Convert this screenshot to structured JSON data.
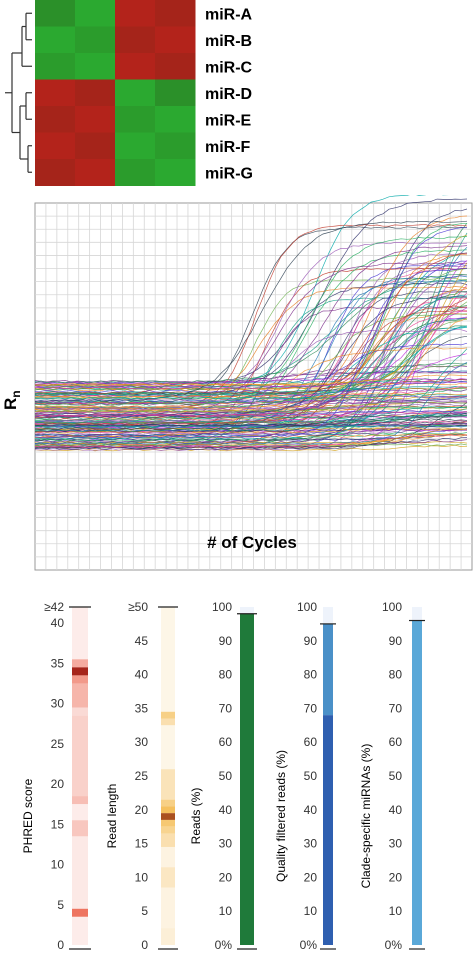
{
  "chart_data": [
    {
      "type": "heatmap",
      "rows": [
        "miR-A",
        "miR-B",
        "miR-C",
        "miR-D",
        "miR-E",
        "miR-F",
        "miR-G"
      ],
      "columns_count": 4,
      "values": [
        [
          -0.7,
          -0.9,
          0.9,
          0.8
        ],
        [
          -0.9,
          -0.8,
          0.8,
          0.9
        ],
        [
          -0.8,
          -0.9,
          0.9,
          0.8
        ],
        [
          0.9,
          0.8,
          -0.9,
          -0.7
        ],
        [
          0.8,
          0.9,
          -0.8,
          -0.9
        ],
        [
          0.9,
          0.8,
          -0.9,
          -0.8
        ],
        [
          0.8,
          0.9,
          -0.8,
          -0.9
        ]
      ],
      "colors": {
        "high": "#c0221c",
        "low": "#2bb533"
      },
      "dendrogram": "left"
    },
    {
      "type": "line",
      "xlabel": "# of Cycles",
      "ylabel": "R",
      "ylabel_subscript": "n",
      "grid": true,
      "x_range": [
        0,
        40
      ],
      "series_description_count": 160
    },
    {
      "type": "heatmap",
      "ylabel": "PHRED score",
      "ticks": [
        "≥42",
        "40",
        "35",
        "30",
        "25",
        "20",
        "15",
        "10",
        "5",
        "0"
      ],
      "color": "#e8452b",
      "bands": [
        {
          "from": 42,
          "to": 35.5,
          "v": 0.1
        },
        {
          "from": 35.5,
          "to": 34.5,
          "v": 0.45
        },
        {
          "from": 34.5,
          "to": 33.5,
          "v": 1.0
        },
        {
          "from": 33.5,
          "to": 32.5,
          "v": 0.55
        },
        {
          "from": 32.5,
          "to": 29.5,
          "v": 0.4
        },
        {
          "from": 29.5,
          "to": 28.5,
          "v": 0.2
        },
        {
          "from": 28.5,
          "to": 18.5,
          "v": 0.25
        },
        {
          "from": 18.5,
          "to": 17.5,
          "v": 0.35
        },
        {
          "from": 17.5,
          "to": 15.5,
          "v": 0.1
        },
        {
          "from": 15.5,
          "to": 13.5,
          "v": 0.3
        },
        {
          "from": 13.5,
          "to": 4.5,
          "v": 0.12
        },
        {
          "from": 4.5,
          "to": 3.5,
          "v": 0.75
        },
        {
          "from": 3.5,
          "to": 0,
          "v": 0.1
        }
      ]
    },
    {
      "type": "heatmap",
      "ylabel": "Read length",
      "ticks": [
        "≥50",
        "45",
        "40",
        "35",
        "30",
        "25",
        "20",
        "15",
        "10",
        "5",
        "0"
      ],
      "color": "#f2b036",
      "bands": [
        {
          "from": 50,
          "to": 34.5,
          "v": 0.12
        },
        {
          "from": 34.5,
          "to": 33.5,
          "v": 0.6
        },
        {
          "from": 33.5,
          "to": 32.5,
          "v": 0.4
        },
        {
          "from": 32.5,
          "to": 26,
          "v": 0.12
        },
        {
          "from": 26,
          "to": 21.5,
          "v": 0.35
        },
        {
          "from": 21.5,
          "to": 20.5,
          "v": 0.6
        },
        {
          "from": 20.5,
          "to": 19.5,
          "v": 0.8
        },
        {
          "from": 19.5,
          "to": 18.5,
          "v": 1.0
        },
        {
          "from": 18.5,
          "to": 17.5,
          "v": 0.7
        },
        {
          "from": 17.5,
          "to": 16.5,
          "v": 0.55
        },
        {
          "from": 16.5,
          "to": 14.5,
          "v": 0.4
        },
        {
          "from": 14.5,
          "to": 11.5,
          "v": 0.15
        },
        {
          "from": 11.5,
          "to": 8.5,
          "v": 0.3
        },
        {
          "from": 8.5,
          "to": 2.5,
          "v": 0.15
        },
        {
          "from": 2.5,
          "to": 0,
          "v": 0.2
        }
      ]
    },
    {
      "type": "bar",
      "ylabel": "Reads (%)",
      "ticks": [
        "100",
        "90",
        "80",
        "70",
        "60",
        "50",
        "40",
        "30",
        "20",
        "10",
        "0%"
      ],
      "ylim": [
        0,
        100
      ],
      "segments": [
        {
          "value": 98,
          "color": "#1f7a3a"
        }
      ]
    },
    {
      "type": "bar",
      "ylabel": "Quality filtered reads (%)",
      "ticks": [
        "100",
        "90",
        "80",
        "70",
        "60",
        "50",
        "40",
        "30",
        "20",
        "10",
        "0%"
      ],
      "ylim": [
        0,
        100
      ],
      "segments": [
        {
          "from": 68,
          "to": 95,
          "color": "#4a90c8"
        },
        {
          "from": 0,
          "to": 68,
          "color": "#2f5fb0"
        }
      ]
    },
    {
      "type": "bar",
      "ylabel": "Clade-specific miRNAs (%)",
      "ticks": [
        "100",
        "90",
        "80",
        "70",
        "60",
        "50",
        "40",
        "30",
        "20",
        "10",
        "0%"
      ],
      "ylim": [
        0,
        100
      ],
      "segments": [
        {
          "from": 0,
          "to": 96,
          "color": "#5aa8d8"
        }
      ]
    }
  ]
}
